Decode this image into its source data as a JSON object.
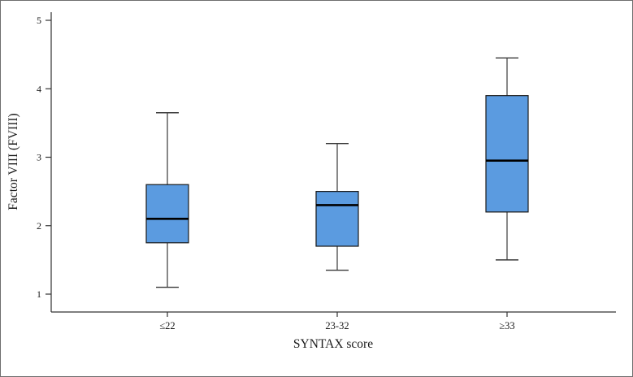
{
  "figure": {
    "ylabel": "Factor VIII (FVIII)",
    "xlabel": "SYNTAX score"
  },
  "chart_data": {
    "type": "boxplot",
    "title": "",
    "xlabel": "SYNTAX score",
    "ylabel": "Factor VIII (FVIII)",
    "categories": [
      "≤22",
      "23-32",
      "≥33"
    ],
    "series": [
      {
        "category": "≤22",
        "whisker_low": 1.1,
        "q1": 1.75,
        "median": 2.1,
        "q3": 2.6,
        "whisker_high": 3.65
      },
      {
        "category": "23-32",
        "whisker_low": 1.35,
        "q1": 1.7,
        "median": 2.3,
        "q3": 2.5,
        "whisker_high": 3.2
      },
      {
        "category": "≥33",
        "whisker_low": 1.5,
        "q1": 2.2,
        "median": 2.95,
        "q3": 3.9,
        "whisker_high": 4.45
      }
    ],
    "yticks": [
      1,
      2,
      3,
      4,
      5
    ],
    "ylim": [
      0.75,
      5.15
    ],
    "grid": false,
    "legend": "none",
    "colors": {
      "box_fill": "#5b9be0",
      "box_border": "#1a1a1a",
      "median": "#000000",
      "whisker": "#3a3a3a",
      "axis": "#333333"
    }
  }
}
